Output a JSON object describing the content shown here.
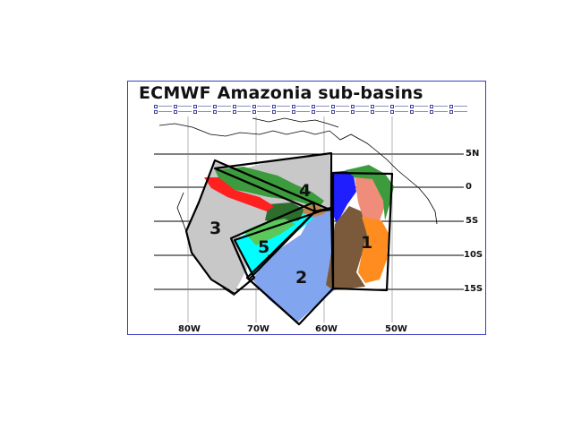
{
  "title": "ECMWF Amazonia sub-basins",
  "lat_labels": [
    "5N",
    "0",
    "5S",
    "10S",
    "15S"
  ],
  "lon_labels": [
    "80W",
    "70W",
    "60W",
    "50W"
  ],
  "basin_labels": [
    "1",
    "2",
    "3",
    "4",
    "5"
  ],
  "colors": {
    "frame": "#3c3cc8",
    "grey_region": "#c8c8c8",
    "light_blue_region": "#82a5f0",
    "cyan_region": "#00ffff",
    "green_region": "#3c9b3c",
    "dark_green_region": "#2d6e2d",
    "red_region": "#ff2020",
    "brown_region": "#7a5a3a",
    "orange_region": "#ff8c1e",
    "salmon_region": "#f08c7a",
    "blue_region": "#1e1eff",
    "tan_region": "#c08850",
    "lime_region": "#5ac85a",
    "polygon_outline": "#000000"
  },
  "legend_key_count": 32
}
